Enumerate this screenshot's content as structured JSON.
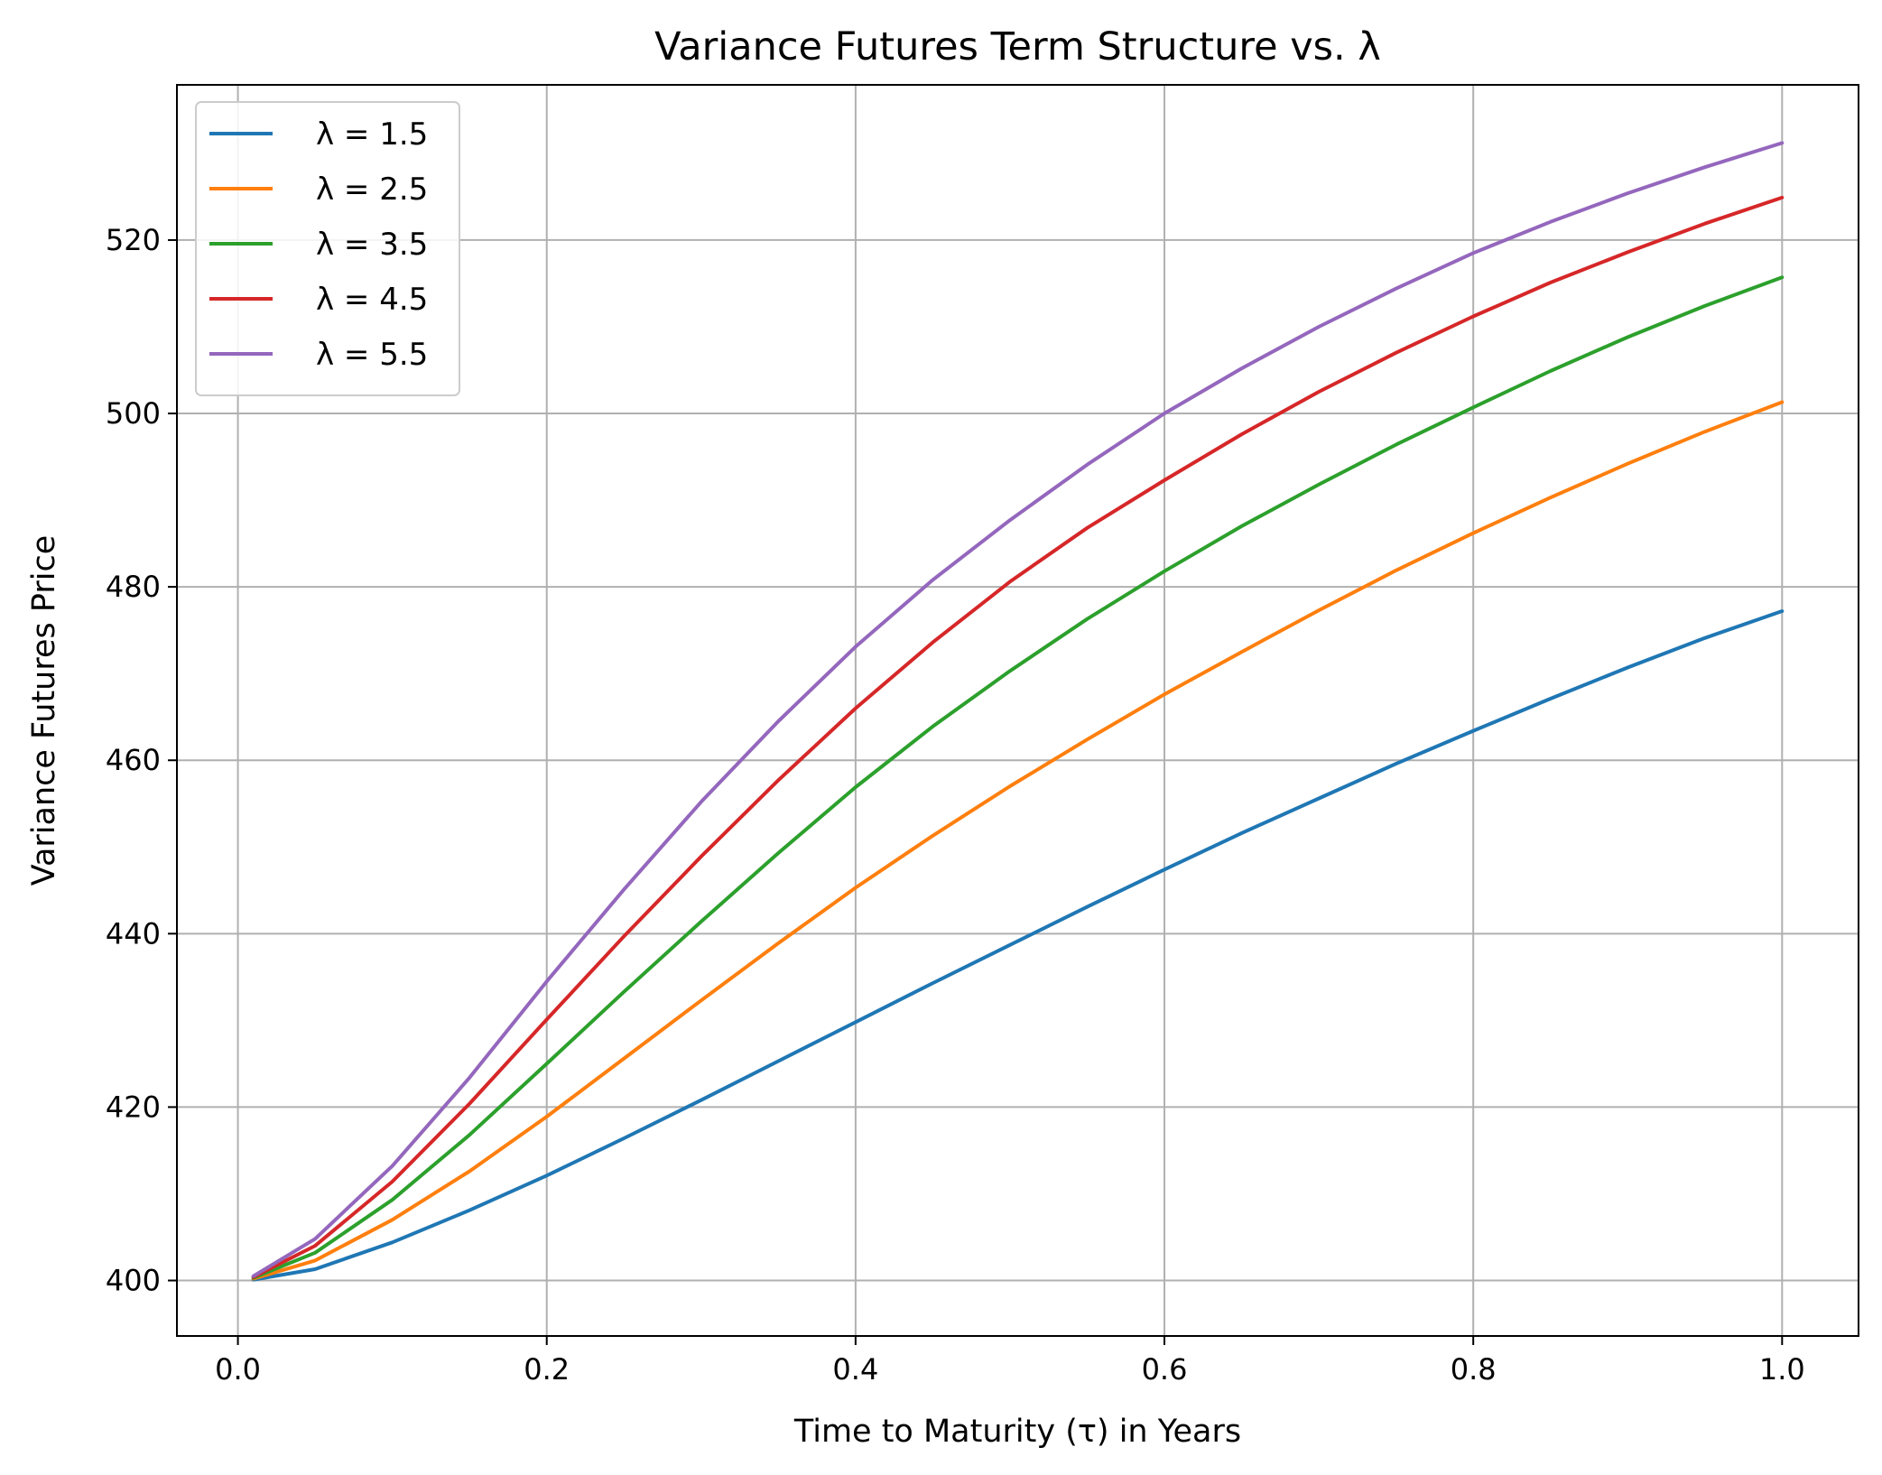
{
  "chart_data": {
    "type": "line",
    "title": "Variance Futures Term Structure vs. λ",
    "xlabel": "Time to Maturity (τ) in Years",
    "ylabel": "Variance Futures Price",
    "xlim": [
      -0.0395,
      1.0495
    ],
    "ylim": [
      393.6,
      537.9
    ],
    "xticks": [
      0.0,
      0.2,
      0.4,
      0.6,
      0.8,
      1.0
    ],
    "xtick_labels": [
      "0.0",
      "0.2",
      "0.4",
      "0.6",
      "0.8",
      "1.0"
    ],
    "yticks": [
      400,
      420,
      440,
      460,
      480,
      500,
      520
    ],
    "ytick_labels": [
      "400",
      "420",
      "440",
      "460",
      "480",
      "500",
      "520"
    ],
    "grid": true,
    "legend_position": "top-left",
    "x": [
      0.01,
      0.05,
      0.1,
      0.15,
      0.2,
      0.25,
      0.3,
      0.35,
      0.4,
      0.45,
      0.5,
      0.55,
      0.6,
      0.65,
      0.7,
      0.75,
      0.8,
      0.85,
      0.9,
      0.95,
      1.0
    ],
    "series": [
      {
        "name": "λ = 1.5",
        "color": "#1f77b4",
        "values": [
          400.1,
          401.3,
          404.4,
          408.1,
          412.1,
          416.4,
          420.8,
          425.3,
          429.8,
          434.3,
          438.7,
          443.1,
          447.4,
          451.6,
          455.6,
          459.6,
          463.4,
          467.1,
          470.7,
          474.1,
          477.2
        ]
      },
      {
        "name": "λ = 2.5",
        "color": "#ff7f0e",
        "values": [
          400.2,
          402.3,
          407.0,
          412.6,
          418.9,
          425.6,
          432.3,
          438.9,
          445.3,
          451.3,
          457.0,
          462.4,
          467.6,
          472.5,
          477.3,
          481.9,
          486.2,
          490.3,
          494.2,
          497.9,
          501.3
        ]
      },
      {
        "name": "λ = 3.5",
        "color": "#2ca02c",
        "values": [
          400.3,
          403.2,
          409.3,
          416.8,
          425.0,
          433.3,
          441.4,
          449.3,
          456.9,
          463.9,
          470.3,
          476.3,
          481.8,
          487.0,
          491.8,
          496.4,
          500.7,
          504.9,
          508.8,
          512.4,
          515.7
        ]
      },
      {
        "name": "λ = 4.5",
        "color": "#d62728",
        "values": [
          400.4,
          404.0,
          411.4,
          420.4,
          430.1,
          439.7,
          448.9,
          457.7,
          466.0,
          473.6,
          480.6,
          486.8,
          492.3,
          497.6,
          502.5,
          507.0,
          511.2,
          515.1,
          518.6,
          521.9,
          524.9
        ]
      },
      {
        "name": "λ = 5.5",
        "color": "#9467bd",
        "values": [
          400.5,
          404.8,
          413.2,
          423.4,
          434.5,
          445.1,
          455.2,
          464.5,
          473.1,
          480.8,
          487.7,
          494.1,
          500.0,
          505.2,
          510.0,
          514.4,
          518.5,
          522.1,
          525.4,
          528.4,
          531.2
        ]
      }
    ]
  }
}
